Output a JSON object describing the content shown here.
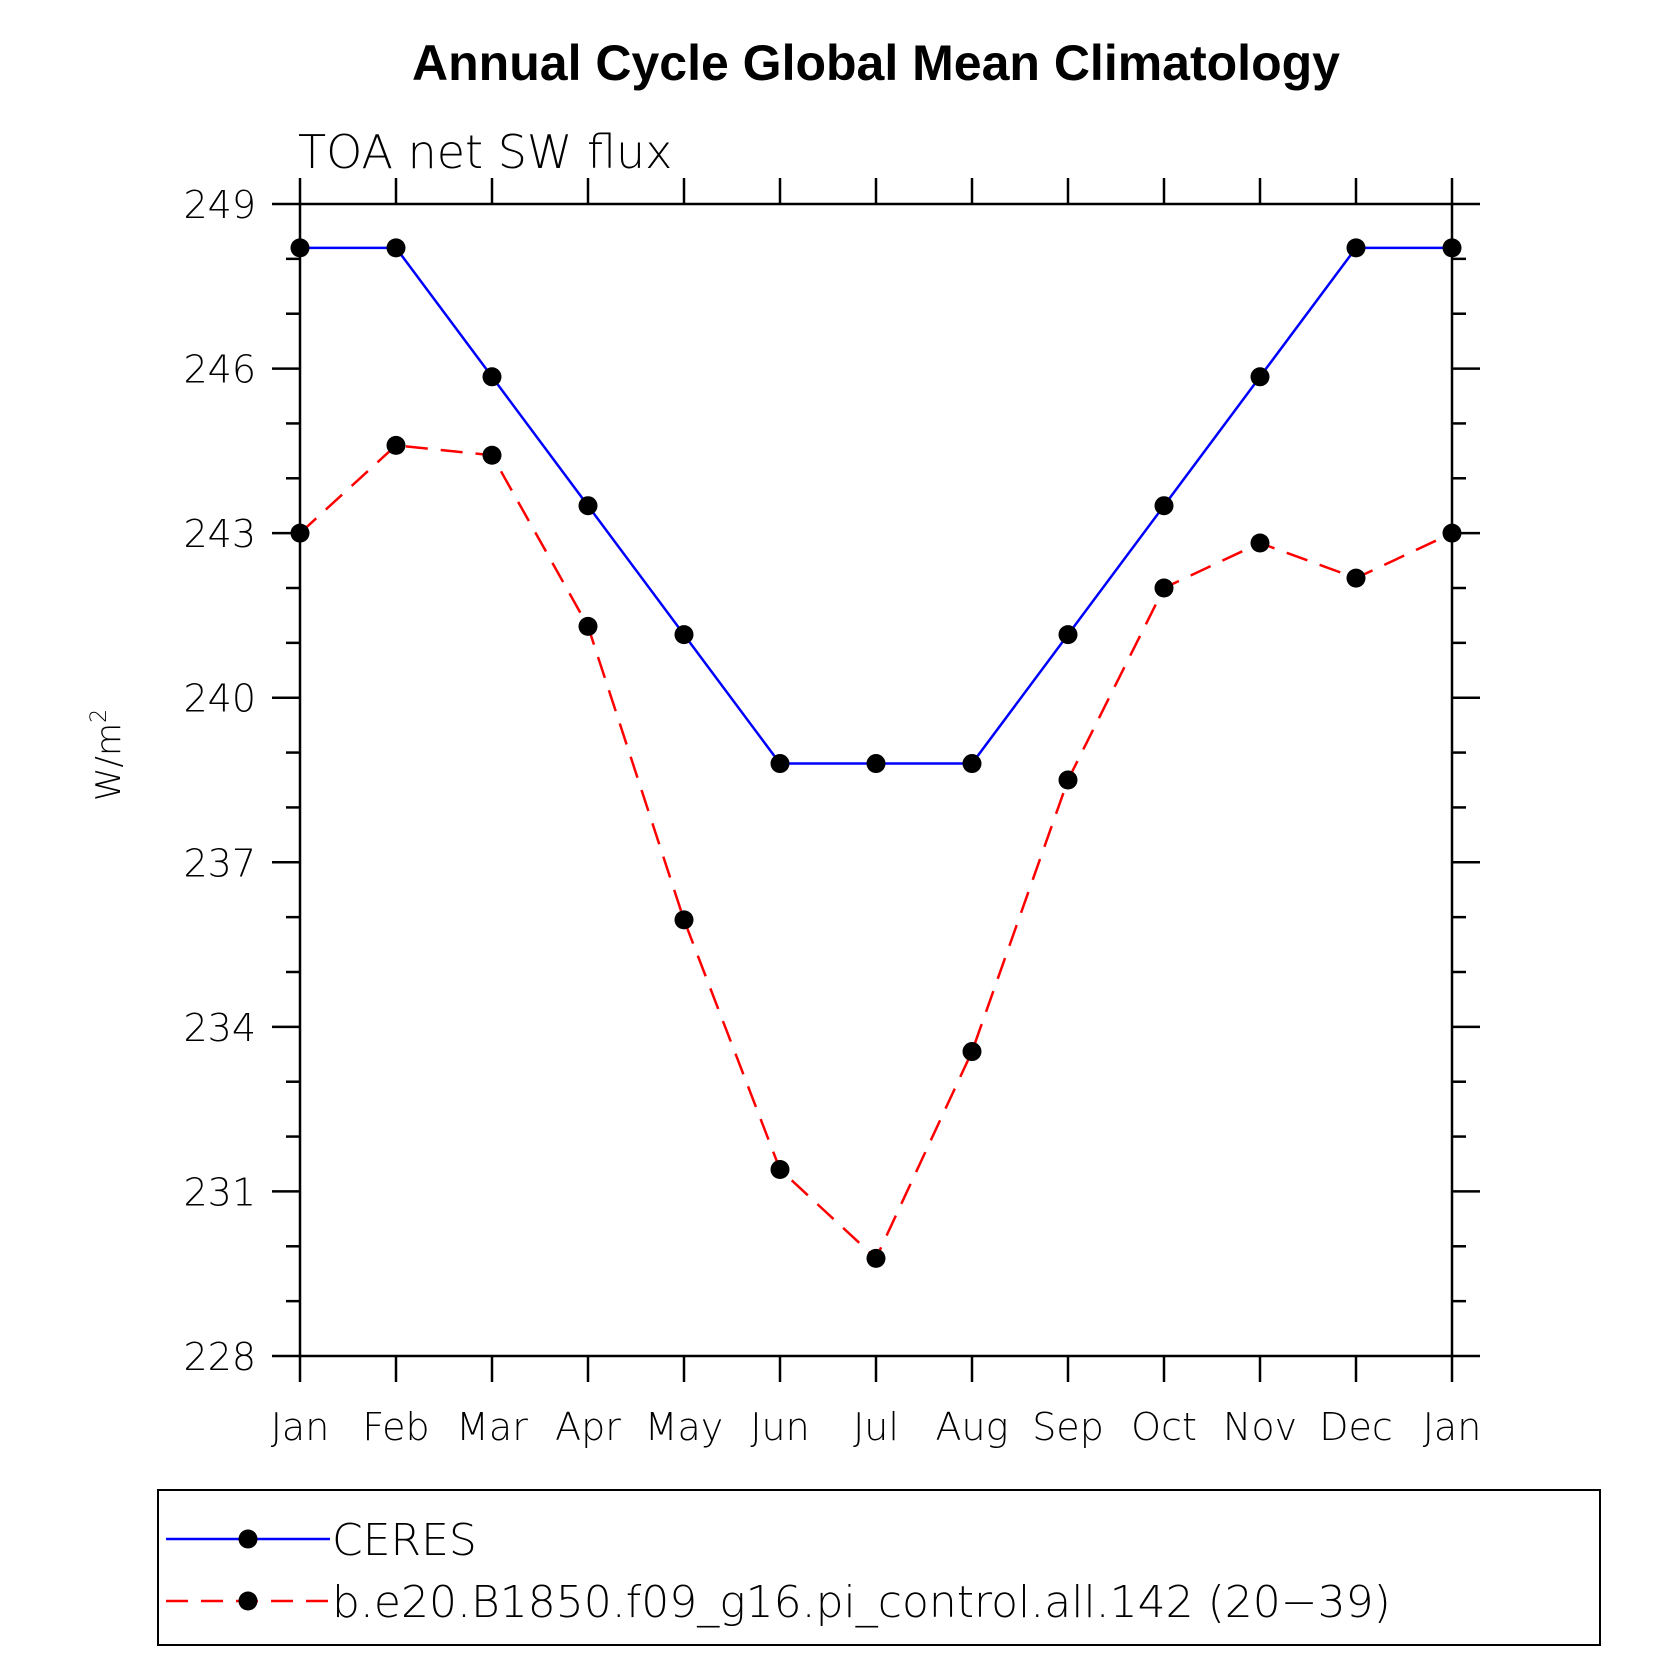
{
  "chart_data": {
    "type": "line",
    "title": "Annual Cycle Global Mean Climatology",
    "subtitle": "TOA net SW flux",
    "xlabel": "",
    "ylabel": "W/m",
    "ylabel_superscript": "2",
    "ylim": [
      228,
      249
    ],
    "yticks": [
      228,
      231,
      234,
      237,
      240,
      243,
      246,
      249
    ],
    "categories": [
      "Jan",
      "Feb",
      "Mar",
      "Apr",
      "May",
      "Jun",
      "Jul",
      "Aug",
      "Sep",
      "Oct",
      "Nov",
      "Dec",
      "Jan"
    ],
    "grid": false,
    "legend_position": "bottom",
    "series": [
      {
        "name": "CERES",
        "color": "#0000ff",
        "style": "solid",
        "values": [
          248.2,
          248.2,
          245.85,
          243.5,
          241.15,
          238.8,
          238.8,
          238.8,
          241.15,
          243.5,
          245.85,
          248.2,
          248.2
        ]
      },
      {
        "name": "b.e20.B1850.f09_g16.pi_control.all.142 (20−39)",
        "color": "#ff0000",
        "style": "dashed",
        "values": [
          243.0,
          244.6,
          244.42,
          241.3,
          235.95,
          231.4,
          229.78,
          233.55,
          238.5,
          242.0,
          242.82,
          242.18,
          243.0
        ]
      }
    ]
  }
}
